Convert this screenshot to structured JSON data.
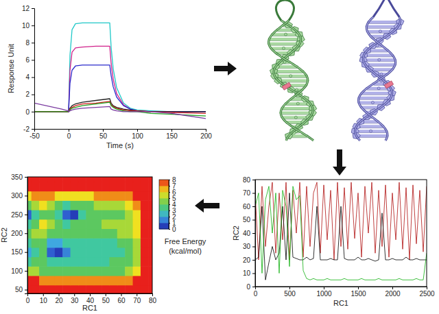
{
  "chart_data": [
    {
      "type": "line",
      "x": [
        -50,
        -10,
        -1,
        0,
        2,
        5,
        10,
        20,
        40,
        60,
        62,
        65,
        70,
        80,
        90,
        100,
        120,
        150,
        200
      ],
      "series": [
        {
          "color": "#1fc8c8",
          "values": [
            0,
            0,
            0,
            0,
            6.5,
            9.5,
            10.2,
            10.3,
            10.3,
            10.3,
            7.5,
            5.0,
            2.8,
            1.0,
            0.4,
            0.2,
            0.1,
            0,
            0
          ]
        },
        {
          "color": "#d0208a",
          "values": [
            0,
            0,
            0,
            0,
            4.8,
            6.9,
            7.4,
            7.5,
            7.6,
            7.6,
            5.6,
            3.8,
            2.1,
            0.8,
            0.3,
            0.1,
            0,
            0,
            0
          ]
        },
        {
          "color": "#2a2acc",
          "values": [
            0,
            0,
            0,
            0,
            3.3,
            4.8,
            5.3,
            5.4,
            5.4,
            5.4,
            4.2,
            2.9,
            1.7,
            0.7,
            0.3,
            0.1,
            0,
            0,
            0
          ]
        },
        {
          "color": "#222222",
          "values": [
            0,
            0,
            0,
            0,
            0.4,
            0.7,
            0.9,
            1.1,
            1.3,
            1.5,
            1.0,
            0.7,
            0.5,
            0.3,
            0.2,
            0.1,
            0,
            0,
            0
          ]
        },
        {
          "color": "#d02020",
          "values": [
            0,
            0,
            0,
            0,
            0.3,
            0.5,
            0.7,
            0.9,
            1.0,
            1.2,
            0.8,
            0.6,
            0.4,
            0.2,
            0.1,
            0.1,
            0,
            -0.1,
            -0.2
          ]
        },
        {
          "color": "#20a020",
          "values": [
            0,
            0,
            0,
            0,
            0.2,
            0.4,
            0.5,
            0.7,
            0.9,
            1.1,
            0.7,
            0.5,
            0.3,
            0.1,
            0,
            0,
            -0.2,
            -0.3,
            -0.5
          ]
        },
        {
          "color": "#7a3aa0",
          "values": [
            1.0,
            0.3,
            0.1,
            0,
            0.1,
            0.2,
            0.3,
            0.4,
            0.5,
            0.6,
            0.3,
            0.2,
            0.1,
            0,
            0,
            0,
            0,
            -0.2,
            -0.8
          ]
        }
      ],
      "xlim": [
        -50,
        200
      ],
      "xticks": [
        -50,
        0,
        50,
        100,
        150,
        200
      ],
      "ylim": [
        -2,
        12
      ],
      "yticks": [
        -2,
        0,
        2,
        4,
        6,
        8,
        10,
        12
      ],
      "x_label": "Time (s)",
      "y_label": "Response Unit"
    },
    {
      "type": "line",
      "x": [
        0,
        50,
        100,
        150,
        200,
        250,
        300,
        350,
        400,
        450,
        500,
        550,
        600,
        650,
        700,
        750,
        800,
        850,
        900,
        950,
        1000,
        1050,
        1100,
        1150,
        1200,
        1250,
        1300,
        1350,
        1400,
        1450,
        1500,
        1550,
        1600,
        1650,
        1700,
        1750,
        1800,
        1850,
        1900,
        1950,
        2000,
        2050,
        2100,
        2150,
        2200,
        2250,
        2300,
        2350,
        2400,
        2450,
        2500
      ],
      "series": [
        {
          "color": "#b01010",
          "values": [
            70,
            20,
            75,
            30,
            60,
            78,
            25,
            70,
            35,
            78,
            20,
            72,
            40,
            78,
            22,
            75,
            30,
            70,
            78,
            25,
            76,
            35,
            72,
            20,
            78,
            30,
            74,
            28,
            78,
            36,
            70,
            22,
            75,
            40,
            78,
            25,
            72,
            30,
            76,
            22,
            70,
            35,
            78,
            28,
            74,
            20,
            76,
            32,
            72,
            26,
            75
          ]
        },
        {
          "color": "#000000",
          "values": [
            20,
            22,
            60,
            5,
            18,
            30,
            20,
            25,
            60,
            20,
            70,
            22,
            21,
            20,
            20,
            22,
            20,
            21,
            60,
            20,
            20,
            20,
            21,
            20,
            20,
            60,
            21,
            20,
            20,
            20,
            22,
            20,
            20,
            21,
            20,
            19,
            20,
            55,
            20,
            20,
            21,
            20,
            20,
            20,
            22,
            20,
            20,
            21,
            20,
            20,
            20
          ]
        },
        {
          "color": "#10b010",
          "values": [
            60,
            70,
            10,
            65,
            75,
            40,
            70,
            10,
            72,
            60,
            15,
            75,
            65,
            68,
            12,
            6,
            5,
            6,
            5,
            5,
            5,
            6,
            5,
            5,
            5,
            5,
            6,
            5,
            5,
            5,
            5,
            6,
            5,
            5,
            5,
            5,
            6,
            5,
            5,
            5,
            5,
            5,
            6,
            5,
            5,
            5,
            5,
            6,
            5,
            5,
            25
          ]
        }
      ],
      "xlim": [
        0,
        2500
      ],
      "xticks": [
        0,
        500,
        1000,
        1500,
        2000,
        2500
      ],
      "ylim": [
        0,
        80
      ],
      "yticks": [
        0,
        10,
        20,
        30,
        40,
        50,
        60,
        70,
        80
      ],
      "x_label": "RC1",
      "y_label": "RC2"
    },
    {
      "type": "heatmap",
      "x": [
        0,
        5,
        10,
        15,
        20,
        25,
        30,
        35,
        40,
        45,
        50,
        55,
        60,
        65,
        70,
        75,
        80
      ],
      "y": [
        50,
        75,
        100,
        125,
        150,
        175,
        200,
        225,
        250,
        275,
        300,
        325,
        350
      ],
      "values": [
        [
          8,
          8,
          8,
          8,
          8,
          8,
          8,
          8,
          8,
          8,
          8,
          8,
          8,
          8,
          8,
          8,
          8
        ],
        [
          8,
          8,
          7,
          7,
          7,
          7,
          7,
          7,
          7,
          7,
          7,
          7,
          7,
          7,
          8,
          8,
          8
        ],
        [
          5,
          5,
          4,
          4,
          4,
          4,
          4,
          4,
          4,
          4,
          4,
          4,
          4,
          5,
          6,
          8,
          8
        ],
        [
          3,
          4,
          4,
          3,
          3,
          3,
          3,
          3,
          3,
          3,
          3,
          4,
          4,
          4,
          5,
          8,
          8
        ],
        [
          2,
          3,
          4,
          1,
          0.5,
          1.5,
          3,
          3,
          3,
          3,
          3,
          3,
          3,
          4,
          5,
          8,
          8
        ],
        [
          3,
          4,
          4,
          2,
          2,
          3,
          3,
          3,
          3,
          3,
          3,
          3,
          4,
          4,
          5,
          8,
          8
        ],
        [
          4,
          5,
          5,
          4,
          4,
          4,
          4,
          4,
          4,
          4,
          4,
          4,
          5,
          5,
          6,
          8,
          8
        ],
        [
          3,
          4,
          6,
          5,
          4,
          3,
          4,
          4,
          4,
          4,
          5,
          5,
          5,
          5,
          6,
          8,
          8
        ],
        [
          1,
          3,
          4,
          4,
          3,
          1,
          0.5,
          3,
          4,
          4,
          4,
          4,
          4,
          5,
          6,
          8,
          8
        ],
        [
          4,
          5,
          6,
          5,
          4,
          3,
          4,
          4,
          4,
          5,
          5,
          5,
          5,
          6,
          7,
          8,
          8
        ],
        [
          6,
          7,
          7,
          7,
          6,
          6,
          6,
          6,
          6,
          7,
          7,
          7,
          7,
          7,
          8,
          8,
          8
        ],
        [
          8,
          8,
          8,
          8,
          8,
          8,
          8,
          8,
          8,
          8,
          8,
          8,
          8,
          8,
          8,
          8,
          8
        ],
        [
          8,
          8,
          8,
          8,
          8,
          8,
          8,
          8,
          8,
          8,
          8,
          8,
          8,
          8,
          8,
          8,
          8
        ]
      ],
      "xlim": [
        0,
        80
      ],
      "xticks": [
        0,
        10,
        20,
        30,
        40,
        50,
        60,
        70,
        80
      ],
      "ylim": [
        40,
        350
      ],
      "yticks": [
        50,
        100,
        150,
        200,
        250,
        300,
        350
      ],
      "x_label": "RC1",
      "y_label": "RC2",
      "colorbar": {
        "range": [
          0,
          8
        ],
        "ticks": [
          0,
          1,
          2,
          3,
          4,
          5,
          6,
          7,
          8
        ],
        "title": [
          "Free Energy",
          "(kcal/mol)"
        ]
      }
    }
  ]
}
